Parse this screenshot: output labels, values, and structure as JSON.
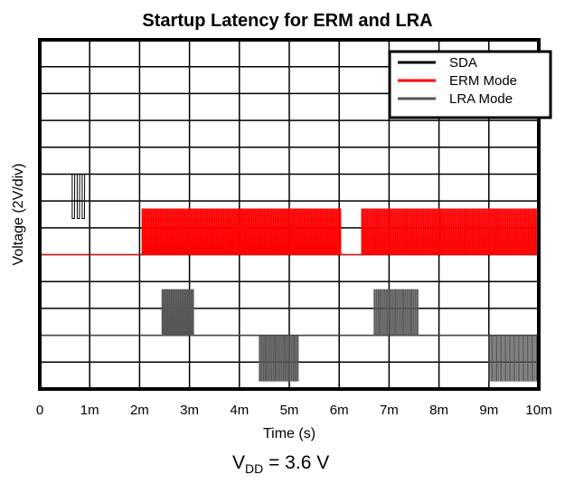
{
  "chart_data": {
    "type": "line",
    "title": "Startup Latency for ERM and LRA",
    "xlabel": "Time (s)",
    "ylabel": "Voltage (2V/div)",
    "footnote_main": "V",
    "footnote_sub": "DD",
    "footnote_rest": " = 3.6 V",
    "x_ticks": [
      "0",
      "1m",
      "2m",
      "3m",
      "4m",
      "5m",
      "6m",
      "7m",
      "8m",
      "9m",
      "10m"
    ],
    "xlim_ms": [
      0,
      10
    ],
    "y_divisions": 13,
    "grid": true,
    "legend_position": "top-right",
    "legend": [
      {
        "name": "SDA",
        "color": "#000000"
      },
      {
        "name": "ERM Mode",
        "color": "#ff0000"
      },
      {
        "name": "LRA Mode",
        "color": "#555555"
      }
    ],
    "series": [
      {
        "name": "SDA",
        "color": "#000000",
        "baseline_div": 8,
        "bursts": [
          {
            "start_ms": 0.65,
            "end_ms": 0.95,
            "level_div": 6.35,
            "count": 3
          }
        ]
      },
      {
        "name": "ERM Mode",
        "color": "#ff0000",
        "baseline_div": 5,
        "bursts": [
          {
            "start_ms": 2.05,
            "end_ms": 6.05,
            "level_div": 6.7,
            "count": 110
          },
          {
            "start_ms": 6.45,
            "end_ms": 10,
            "level_div": 6.7,
            "count": 95
          }
        ]
      },
      {
        "name": "LRA Mode",
        "color": "#555555",
        "baseline_div": 2,
        "bursts": [
          {
            "start_ms": 2.45,
            "end_ms": 3.1,
            "level_div": 3.7,
            "count": 18
          },
          {
            "start_ms": 4.4,
            "end_ms": 5.2,
            "level_div": 0.3,
            "count": 20
          },
          {
            "start_ms": 6.7,
            "end_ms": 7.6,
            "level_div": 3.7,
            "count": 22
          },
          {
            "start_ms": 9.0,
            "end_ms": 10,
            "level_div": 0.3,
            "count": 22
          }
        ]
      }
    ]
  }
}
